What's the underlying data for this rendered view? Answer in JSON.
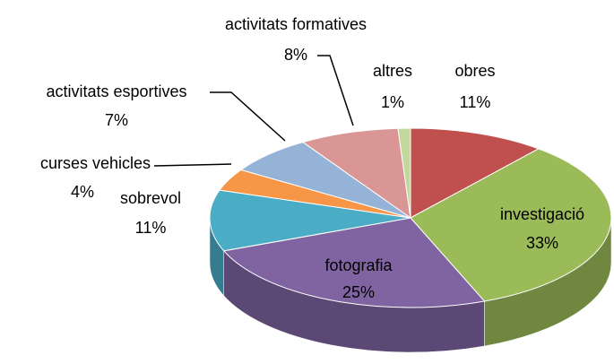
{
  "chart_data": {
    "type": "pie3d",
    "categories": [
      "obres",
      "investigació",
      "fotografia",
      "sobrevol",
      "curses vehicles",
      "activitats esportives",
      "activitats formatives",
      "altres"
    ],
    "values": [
      11,
      33,
      25,
      11,
      4,
      7,
      8,
      1
    ],
    "value_labels": [
      "11%",
      "33%",
      "25%",
      "11%",
      "4%",
      "7%",
      "8%",
      "1%"
    ],
    "colors": [
      "#c0504d",
      "#9bbb59",
      "#8064a2",
      "#4bacc6",
      "#f79646",
      "#95b3d7",
      "#d99694",
      "#c3d69b"
    ]
  }
}
